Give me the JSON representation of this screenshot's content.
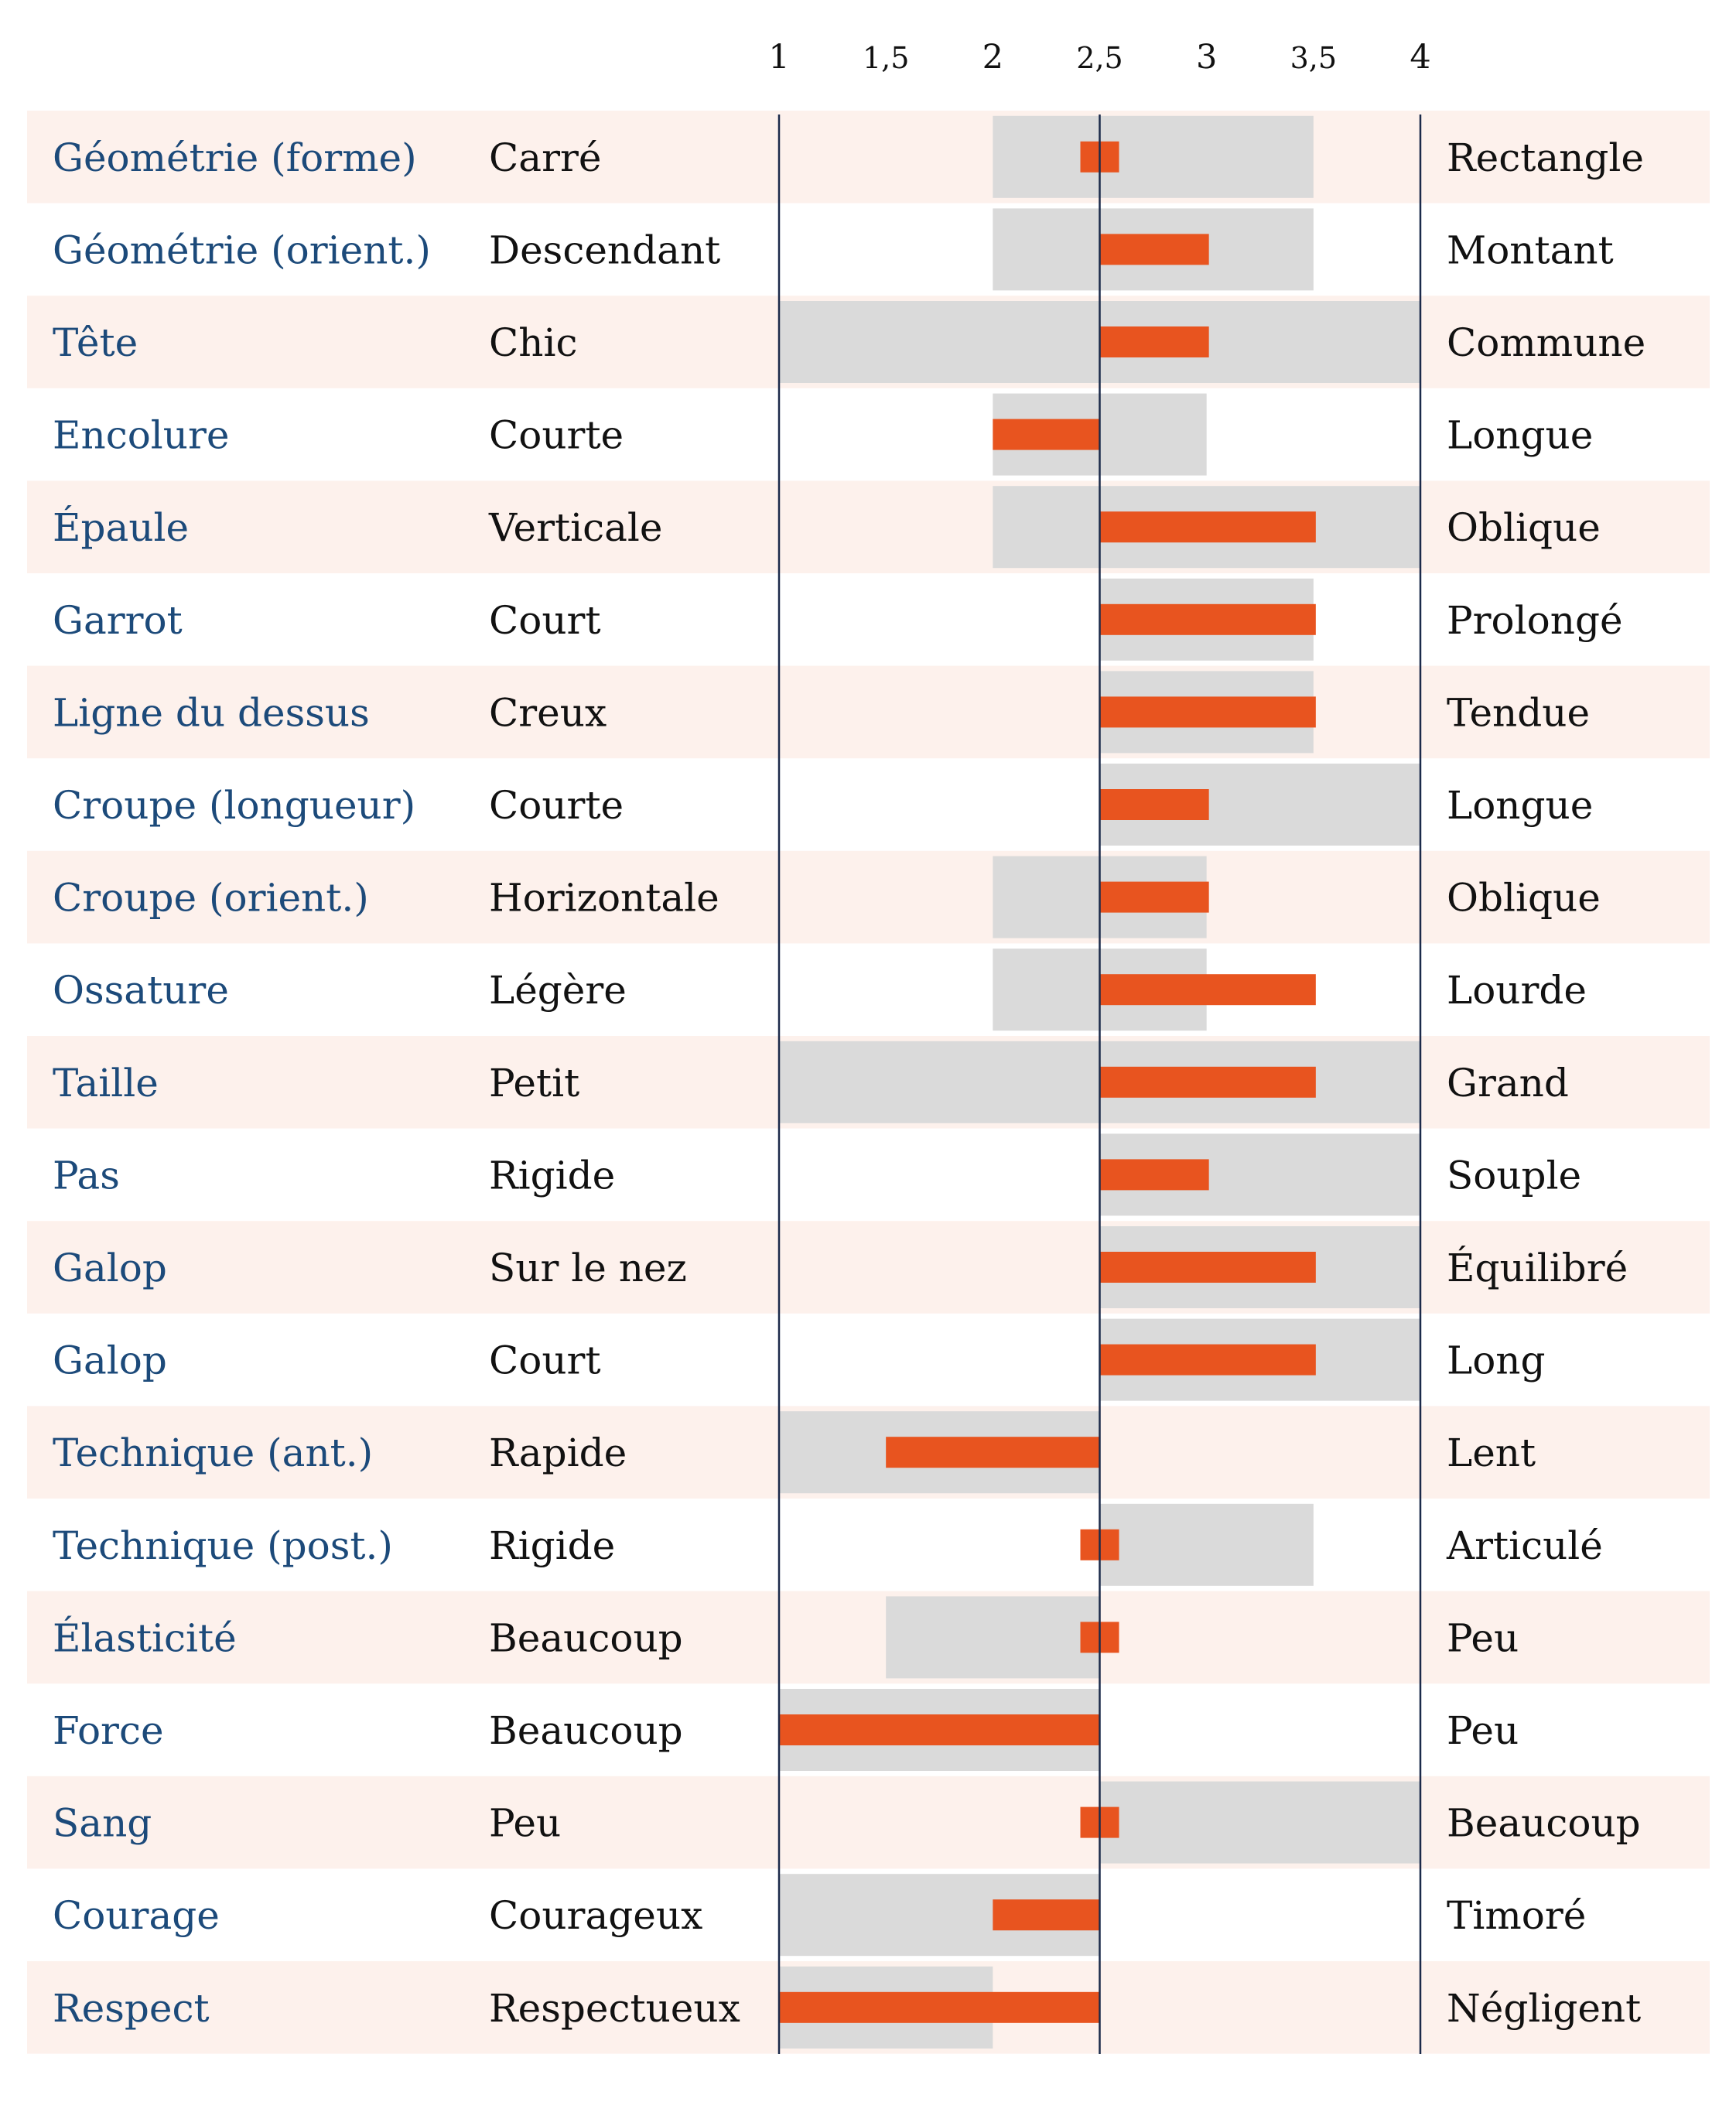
{
  "colors": {
    "stripe": "#fdf1ec",
    "range": "#dadada",
    "bar": "#e8541f",
    "axis": "#1b2a4a",
    "trait_text": "#1c4a7a",
    "pole_text": "#111111"
  },
  "chart_data": {
    "type": "bar",
    "title": "",
    "xlabel": "",
    "ylabel": "",
    "xlim": [
      1,
      4
    ],
    "midpoint": 2.5,
    "ticks": [
      {
        "value": 1,
        "label": "1"
      },
      {
        "value": 1.5,
        "label": "1,5"
      },
      {
        "value": 2,
        "label": "2"
      },
      {
        "value": 2.5,
        "label": "2,5"
      },
      {
        "value": 3,
        "label": "3"
      },
      {
        "value": 3.5,
        "label": "3,5"
      },
      {
        "value": 4,
        "label": "4"
      }
    ],
    "rows": [
      {
        "trait": "Géométrie (forme)",
        "left": "Carré",
        "right": "Rectangle",
        "range": [
          2,
          3.5
        ],
        "value": 2.5
      },
      {
        "trait": "Géométrie (orient.)",
        "left": "Descendant",
        "right": "Montant",
        "range": [
          2,
          3.5
        ],
        "value": 3
      },
      {
        "trait": "Tête",
        "left": "Chic",
        "right": "Commune",
        "range": [
          1,
          4
        ],
        "value": 3
      },
      {
        "trait": "Encolure",
        "left": "Courte",
        "right": "Longue",
        "range": [
          2,
          3
        ],
        "value": 2
      },
      {
        "trait": "Épaule",
        "left": "Verticale",
        "right": "Oblique",
        "range": [
          2,
          4
        ],
        "value": 3.5
      },
      {
        "trait": "Garrot",
        "left": "Court",
        "right": "Prolongé",
        "range": [
          2.5,
          3.5
        ],
        "value": 3.5
      },
      {
        "trait": "Ligne du dessus",
        "left": "Creux",
        "right": "Tendue",
        "range": [
          2.5,
          3.5
        ],
        "value": 3.5
      },
      {
        "trait": "Croupe (longueur)",
        "left": "Courte",
        "right": "Longue",
        "range": [
          2.5,
          4
        ],
        "value": 3
      },
      {
        "trait": "Croupe (orient.)",
        "left": "Horizontale",
        "right": "Oblique",
        "range": [
          2,
          3
        ],
        "value": 3
      },
      {
        "trait": "Ossature",
        "left": "Légère",
        "right": "Lourde",
        "range": [
          2,
          3
        ],
        "value": 3.5
      },
      {
        "trait": "Taille",
        "left": "Petit",
        "right": "Grand",
        "range": [
          1,
          4
        ],
        "value": 3.5
      },
      {
        "trait": "Pas",
        "left": "Rigide",
        "right": "Souple",
        "range": [
          2.5,
          4
        ],
        "value": 3
      },
      {
        "trait": "Galop",
        "left": "Sur le nez",
        "right": "Équilibré",
        "range": [
          2.5,
          4
        ],
        "value": 3.5
      },
      {
        "trait": "Galop",
        "left": "Court",
        "right": "Long",
        "range": [
          2.5,
          4
        ],
        "value": 3.5
      },
      {
        "trait": "Technique (ant.)",
        "left": "Rapide",
        "right": "Lent",
        "range": [
          1,
          2.5
        ],
        "value": 1.5
      },
      {
        "trait": "Technique (post.)",
        "left": "Rigide",
        "right": "Articulé",
        "range": [
          2.5,
          3.5
        ],
        "value": 2.5
      },
      {
        "trait": "Élasticité",
        "left": "Beaucoup",
        "right": "Peu",
        "range": [
          1.5,
          2.5
        ],
        "value": 2.5
      },
      {
        "trait": "Force",
        "left": "Beaucoup",
        "right": "Peu",
        "range": [
          1,
          2.5
        ],
        "value": 1
      },
      {
        "trait": "Sang",
        "left": "Peu",
        "right": "Beaucoup",
        "range": [
          2.5,
          4
        ],
        "value": 2.5
      },
      {
        "trait": "Courage",
        "left": "Courageux",
        "right": "Timoré",
        "range": [
          1,
          2.5
        ],
        "value": 2
      },
      {
        "trait": "Respect",
        "left": "Respectueux",
        "right": "Négligent",
        "range": [
          1,
          2
        ],
        "value": 1
      }
    ]
  }
}
